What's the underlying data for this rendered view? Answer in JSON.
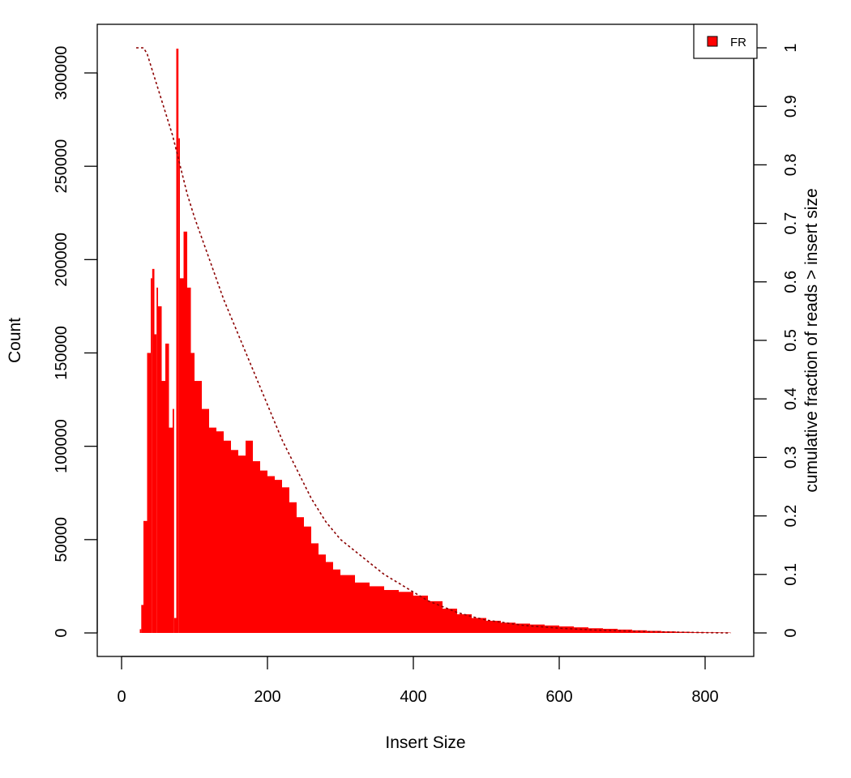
{
  "chart_data": {
    "type": "bar",
    "title": "",
    "xlabel": "Insert Size",
    "ylabel": "Count",
    "y2label": "cumulative fraction of reads > insert size",
    "xlim": [
      0,
      840
    ],
    "ylim": [
      0,
      320000
    ],
    "y2lim": [
      0,
      1
    ],
    "x_ticks": [
      "0",
      "200",
      "400",
      "600",
      "800"
    ],
    "y_ticks": [
      "0",
      "50000",
      "100000",
      "150000",
      "200000",
      "250000",
      "300000"
    ],
    "y2_ticks": [
      "0",
      "0.1",
      "0.2",
      "0.3",
      "0.4",
      "0.5",
      "0.6",
      "0.7",
      "0.8",
      "0.9",
      "1"
    ],
    "legend": {
      "position": "top-right",
      "entries": [
        "FR"
      ]
    },
    "colors": {
      "bars": "#ff0000",
      "cumulative_line": "#8b0000",
      "frame": "#000000"
    },
    "series": [
      {
        "name": "FR",
        "kind": "histogram",
        "x": [
          20,
          25,
          27,
          30,
          35,
          40,
          42,
          45,
          48,
          50,
          55,
          60,
          65,
          70,
          72,
          75,
          78,
          80,
          85,
          90,
          95,
          100,
          110,
          120,
          130,
          140,
          150,
          160,
          170,
          180,
          190,
          200,
          210,
          220,
          230,
          240,
          250,
          260,
          270,
          280,
          290,
          300,
          320,
          340,
          360,
          380,
          400,
          420,
          440,
          460,
          480,
          500,
          520,
          540,
          560,
          580,
          600,
          620,
          640,
          660,
          680,
          700,
          720,
          740,
          760,
          780,
          800,
          820,
          835
        ],
        "values": [
          0,
          2000,
          15000,
          60000,
          150000,
          190000,
          195000,
          160000,
          185000,
          175000,
          135000,
          155000,
          110000,
          120000,
          8000,
          313000,
          265000,
          190000,
          215000,
          185000,
          150000,
          135000,
          120000,
          110000,
          108000,
          103000,
          98000,
          95000,
          103000,
          92000,
          87000,
          84000,
          82000,
          78000,
          70000,
          62000,
          57000,
          48000,
          42000,
          38000,
          34000,
          31000,
          27000,
          25000,
          23000,
          22000,
          20000,
          17000,
          13000,
          10000,
          8000,
          6500,
          5500,
          5000,
          4500,
          4000,
          3500,
          3000,
          2500,
          2200,
          1800,
          1400,
          1100,
          800,
          600,
          400,
          300,
          200,
          100
        ]
      },
      {
        "name": "cumulative fraction of reads > insert size",
        "kind": "line",
        "axis": "right",
        "x": [
          20,
          30,
          35,
          40,
          50,
          60,
          70,
          80,
          90,
          100,
          120,
          140,
          160,
          180,
          200,
          220,
          240,
          260,
          280,
          300,
          320,
          340,
          360,
          380,
          400,
          420,
          440,
          460,
          480,
          500,
          550,
          600,
          650,
          700,
          750,
          800,
          835
        ],
        "values": [
          1.0,
          1.0,
          0.99,
          0.97,
          0.93,
          0.89,
          0.85,
          0.8,
          0.75,
          0.71,
          0.64,
          0.57,
          0.51,
          0.45,
          0.39,
          0.33,
          0.28,
          0.23,
          0.19,
          0.16,
          0.14,
          0.12,
          0.1,
          0.085,
          0.07,
          0.055,
          0.045,
          0.035,
          0.028,
          0.022,
          0.013,
          0.008,
          0.005,
          0.003,
          0.0015,
          0.0005,
          0.0
        ]
      }
    ]
  }
}
